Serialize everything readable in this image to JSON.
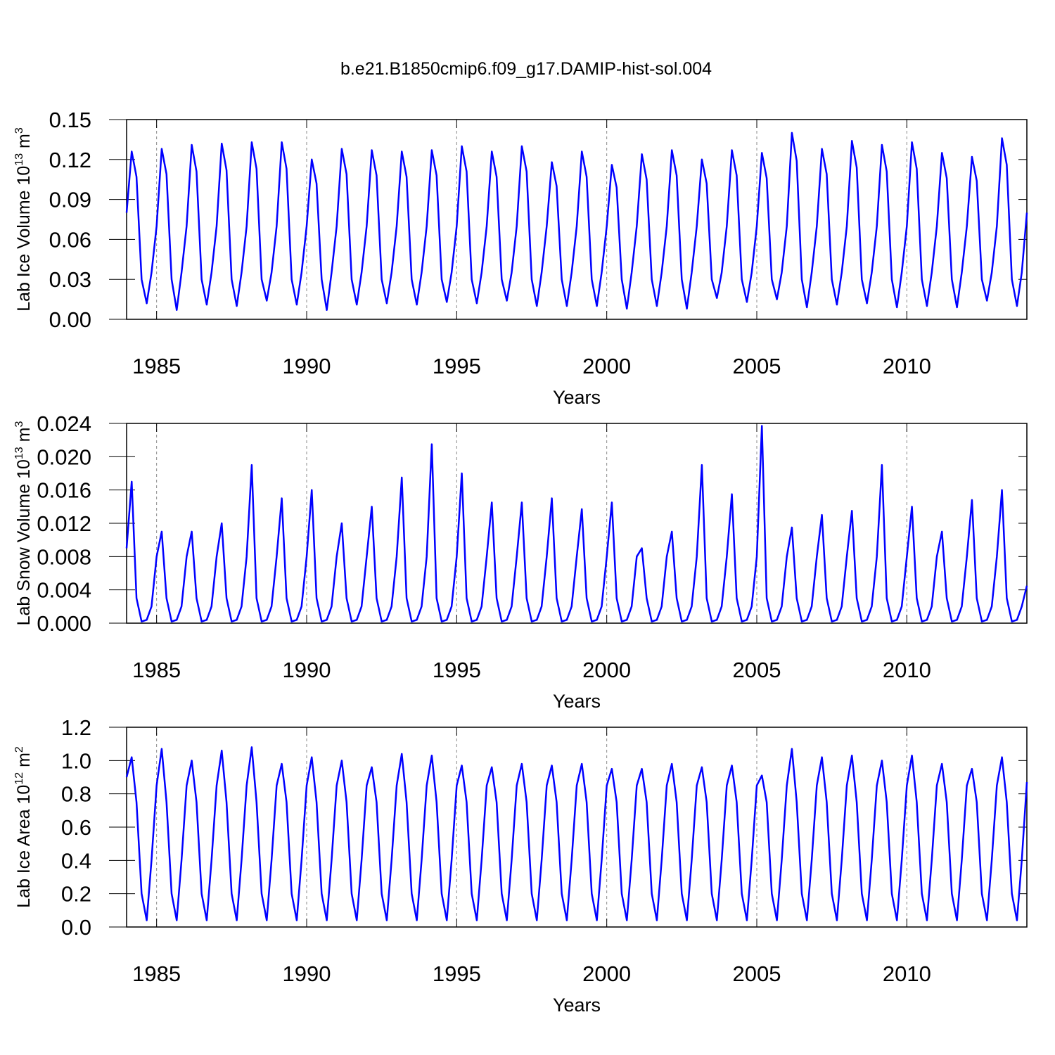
{
  "chart_data": {
    "type": "line",
    "title": "b.e21.B1850cmip6.f09_g17.DAMIP-hist-sol.004",
    "xlabel": "Years",
    "xlim": [
      1984,
      2014
    ],
    "xticks": [
      1985,
      1990,
      1995,
      2000,
      2005,
      2010
    ],
    "grid": true,
    "x": [
      1984,
      1984.17,
      1984.33,
      1984.5,
      1984.67,
      1984.83,
      1985,
      1985.17,
      1985.33,
      1985.5,
      1985.67,
      1985.83,
      1986,
      1986.17,
      1986.33,
      1986.5,
      1986.67,
      1986.83,
      1987,
      1987.17,
      1987.33,
      1987.5,
      1987.67,
      1987.83,
      1988,
      1988.17,
      1988.33,
      1988.5,
      1988.67,
      1988.83,
      1989,
      1989.17,
      1989.33,
      1989.5,
      1989.67,
      1989.83,
      1990,
      1990.17,
      1990.33,
      1990.5,
      1990.67,
      1990.83,
      1991,
      1991.17,
      1991.33,
      1991.5,
      1991.67,
      1991.83,
      1992,
      1992.17,
      1992.33,
      1992.5,
      1992.67,
      1992.83,
      1993,
      1993.17,
      1993.33,
      1993.5,
      1993.67,
      1993.83,
      1994,
      1994.17,
      1994.33,
      1994.5,
      1994.67,
      1994.83,
      1995,
      1995.17,
      1995.33,
      1995.5,
      1995.67,
      1995.83,
      1996,
      1996.17,
      1996.33,
      1996.5,
      1996.67,
      1996.83,
      1997,
      1997.17,
      1997.33,
      1997.5,
      1997.67,
      1997.83,
      1998,
      1998.17,
      1998.33,
      1998.5,
      1998.67,
      1998.83,
      1999,
      1999.17,
      1999.33,
      1999.5,
      1999.67,
      1999.83,
      2000,
      2000.17,
      2000.33,
      2000.5,
      2000.67,
      2000.83,
      2001,
      2001.17,
      2001.33,
      2001.5,
      2001.67,
      2001.83,
      2002,
      2002.17,
      2002.33,
      2002.5,
      2002.67,
      2002.83,
      2003,
      2003.17,
      2003.33,
      2003.5,
      2003.67,
      2003.83,
      2004,
      2004.17,
      2004.33,
      2004.5,
      2004.67,
      2004.83,
      2005,
      2005.17,
      2005.33,
      2005.5,
      2005.67,
      2005.83,
      2006,
      2006.17,
      2006.33,
      2006.5,
      2006.67,
      2006.83,
      2007,
      2007.17,
      2007.33,
      2007.5,
      2007.67,
      2007.83,
      2008,
      2008.17,
      2008.33,
      2008.5,
      2008.67,
      2008.83,
      2009,
      2009.17,
      2009.33,
      2009.5,
      2009.67,
      2009.83,
      2010,
      2010.17,
      2010.33,
      2010.5,
      2010.67,
      2010.83,
      2011,
      2011.17,
      2011.33,
      2011.5,
      2011.67,
      2011.83,
      2012,
      2012.17,
      2012.33,
      2012.5,
      2012.67,
      2012.83,
      2013,
      2013.17,
      2013.33,
      2013.5,
      2013.67,
      2013.83,
      2014
    ],
    "panels": [
      {
        "ylabel": [
          "Lab Ice Volume 10",
          "13",
          " m",
          "3"
        ],
        "ylim": [
          0,
          0.15
        ],
        "yticks": [
          {
            "value": 0,
            "label": "0.00"
          },
          0.03,
          0.06,
          0.09,
          0.12,
          0.15
        ],
        "series": [
          {
            "color": "#0000ff",
            "values": [
              0.08,
              0.126,
              0.107,
              0.03,
              0.012,
              0.035,
              0.07,
              0.128,
              0.109,
              0.03,
              0.007,
              0.035,
              0.07,
              0.131,
              0.111,
              0.03,
              0.011,
              0.035,
              0.07,
              0.132,
              0.112,
              0.03,
              0.01,
              0.035,
              0.07,
              0.133,
              0.113,
              0.03,
              0.014,
              0.035,
              0.07,
              0.133,
              0.113,
              0.03,
              0.011,
              0.035,
              0.07,
              0.12,
              0.102,
              0.03,
              0.007,
              0.035,
              0.07,
              0.128,
              0.109,
              0.03,
              0.011,
              0.035,
              0.07,
              0.127,
              0.108,
              0.03,
              0.012,
              0.035,
              0.07,
              0.126,
              0.107,
              0.03,
              0.011,
              0.035,
              0.07,
              0.127,
              0.108,
              0.03,
              0.013,
              0.035,
              0.07,
              0.13,
              0.111,
              0.03,
              0.012,
              0.035,
              0.07,
              0.126,
              0.107,
              0.03,
              0.014,
              0.035,
              0.07,
              0.13,
              0.111,
              0.03,
              0.01,
              0.035,
              0.07,
              0.118,
              0.1,
              0.03,
              0.01,
              0.035,
              0.07,
              0.126,
              0.107,
              0.03,
              0.01,
              0.035,
              0.07,
              0.116,
              0.099,
              0.03,
              0.008,
              0.035,
              0.07,
              0.124,
              0.105,
              0.03,
              0.01,
              0.035,
              0.07,
              0.127,
              0.108,
              0.03,
              0.008,
              0.035,
              0.07,
              0.12,
              0.102,
              0.03,
              0.016,
              0.035,
              0.07,
              0.127,
              0.108,
              0.03,
              0.013,
              0.035,
              0.07,
              0.125,
              0.106,
              0.03,
              0.015,
              0.035,
              0.07,
              0.14,
              0.119,
              0.03,
              0.009,
              0.035,
              0.07,
              0.128,
              0.109,
              0.03,
              0.011,
              0.035,
              0.07,
              0.134,
              0.114,
              0.03,
              0.012,
              0.035,
              0.07,
              0.131,
              0.111,
              0.03,
              0.009,
              0.035,
              0.07,
              0.133,
              0.113,
              0.03,
              0.01,
              0.035,
              0.07,
              0.125,
              0.106,
              0.03,
              0.009,
              0.035,
              0.07,
              0.122,
              0.104,
              0.03,
              0.014,
              0.035,
              0.07,
              0.136,
              0.116,
              0.03,
              0.01,
              0.035,
              0.08
            ]
          }
        ]
      },
      {
        "ylabel": [
          "Lab Snow Volume 10",
          "13",
          " m",
          "3"
        ],
        "ylim": [
          0,
          0.024
        ],
        "yticks": [
          {
            "value": 0,
            "label": "0.000"
          },
          0.004,
          0.008,
          0.012,
          0.016,
          {
            "value": 0.02,
            "label": "0.020"
          },
          0.024
        ],
        "series": [
          {
            "color": "#0000ff",
            "values": [
              0.009,
              0.017,
              0.003,
              0.0002,
              0.0004,
              0.002,
              0.008,
              0.011,
              0.003,
              0.0002,
              0.0004,
              0.002,
              0.008,
              0.011,
              0.003,
              0.0002,
              0.0004,
              0.002,
              0.008,
              0.012,
              0.003,
              0.0002,
              0.0004,
              0.002,
              0.008,
              0.019,
              0.003,
              0.0002,
              0.0004,
              0.002,
              0.008,
              0.015,
              0.003,
              0.0002,
              0.0004,
              0.002,
              0.008,
              0.016,
              0.003,
              0.0002,
              0.0004,
              0.002,
              0.008,
              0.012,
              0.003,
              0.0002,
              0.0004,
              0.002,
              0.008,
              0.014,
              0.003,
              0.0002,
              0.0004,
              0.002,
              0.008,
              0.0175,
              0.003,
              0.0002,
              0.0004,
              0.002,
              0.008,
              0.0215,
              0.003,
              0.0002,
              0.0004,
              0.002,
              0.008,
              0.018,
              0.003,
              0.0002,
              0.0004,
              0.002,
              0.008,
              0.0145,
              0.003,
              0.0002,
              0.0004,
              0.002,
              0.008,
              0.0145,
              0.003,
              0.0002,
              0.0004,
              0.002,
              0.008,
              0.015,
              0.003,
              0.0002,
              0.0004,
              0.002,
              0.008,
              0.0137,
              0.003,
              0.0002,
              0.0004,
              0.002,
              0.008,
              0.0145,
              0.003,
              0.0002,
              0.0004,
              0.002,
              0.008,
              0.009,
              0.003,
              0.0002,
              0.0004,
              0.002,
              0.008,
              0.011,
              0.003,
              0.0002,
              0.0004,
              0.002,
              0.008,
              0.019,
              0.003,
              0.0002,
              0.0004,
              0.002,
              0.008,
              0.0155,
              0.003,
              0.0002,
              0.0004,
              0.002,
              0.008,
              0.0237,
              0.003,
              0.0002,
              0.0004,
              0.002,
              0.008,
              0.0115,
              0.003,
              0.0002,
              0.0004,
              0.002,
              0.008,
              0.013,
              0.003,
              0.0002,
              0.0004,
              0.002,
              0.008,
              0.0135,
              0.003,
              0.0002,
              0.0004,
              0.002,
              0.008,
              0.019,
              0.003,
              0.0002,
              0.0004,
              0.002,
              0.008,
              0.014,
              0.003,
              0.0002,
              0.0004,
              0.002,
              0.008,
              0.011,
              0.003,
              0.0002,
              0.0004,
              0.002,
              0.008,
              0.0148,
              0.003,
              0.0002,
              0.0004,
              0.002,
              0.008,
              0.016,
              0.003,
              0.0002,
              0.0004,
              0.002,
              0.0045
            ]
          }
        ]
      },
      {
        "ylabel": [
          "Lab Ice Area 10",
          "12",
          " m",
          "2"
        ],
        "ylim": [
          0,
          1.2
        ],
        "yticks": [
          {
            "value": 0,
            "label": "0.0"
          },
          0.2,
          0.4,
          0.6,
          0.8,
          {
            "value": 1,
            "label": "1.0"
          },
          1.2
        ],
        "series": [
          {
            "color": "#0000ff",
            "values": [
              0.9,
              1.02,
              0.75,
              0.2,
              0.04,
              0.4,
              0.85,
              1.07,
              0.75,
              0.2,
              0.04,
              0.4,
              0.85,
              1.0,
              0.75,
              0.2,
              0.04,
              0.4,
              0.85,
              1.06,
              0.75,
              0.2,
              0.04,
              0.4,
              0.85,
              1.08,
              0.75,
              0.2,
              0.04,
              0.4,
              0.85,
              0.98,
              0.75,
              0.2,
              0.04,
              0.4,
              0.85,
              1.02,
              0.75,
              0.2,
              0.04,
              0.4,
              0.85,
              1.0,
              0.75,
              0.2,
              0.04,
              0.4,
              0.85,
              0.96,
              0.75,
              0.2,
              0.04,
              0.4,
              0.85,
              1.04,
              0.75,
              0.2,
              0.04,
              0.4,
              0.85,
              1.03,
              0.75,
              0.2,
              0.04,
              0.4,
              0.85,
              0.97,
              0.75,
              0.2,
              0.04,
              0.4,
              0.85,
              0.96,
              0.75,
              0.2,
              0.04,
              0.4,
              0.85,
              0.98,
              0.75,
              0.2,
              0.04,
              0.4,
              0.85,
              0.97,
              0.75,
              0.2,
              0.04,
              0.4,
              0.85,
              0.98,
              0.75,
              0.2,
              0.04,
              0.4,
              0.85,
              0.95,
              0.75,
              0.2,
              0.04,
              0.4,
              0.85,
              0.95,
              0.75,
              0.2,
              0.04,
              0.4,
              0.85,
              0.98,
              0.75,
              0.2,
              0.04,
              0.4,
              0.85,
              0.96,
              0.75,
              0.2,
              0.04,
              0.4,
              0.85,
              0.97,
              0.75,
              0.2,
              0.04,
              0.4,
              0.85,
              0.91,
              0.75,
              0.2,
              0.04,
              0.4,
              0.85,
              1.07,
              0.75,
              0.2,
              0.04,
              0.4,
              0.85,
              1.02,
              0.75,
              0.2,
              0.04,
              0.4,
              0.85,
              1.03,
              0.75,
              0.2,
              0.04,
              0.4,
              0.85,
              1.0,
              0.75,
              0.2,
              0.04,
              0.4,
              0.85,
              1.03,
              0.75,
              0.2,
              0.04,
              0.4,
              0.85,
              0.98,
              0.75,
              0.2,
              0.04,
              0.4,
              0.85,
              0.95,
              0.75,
              0.2,
              0.04,
              0.4,
              0.85,
              1.02,
              0.75,
              0.2,
              0.04,
              0.4,
              0.87
            ]
          }
        ]
      }
    ]
  }
}
